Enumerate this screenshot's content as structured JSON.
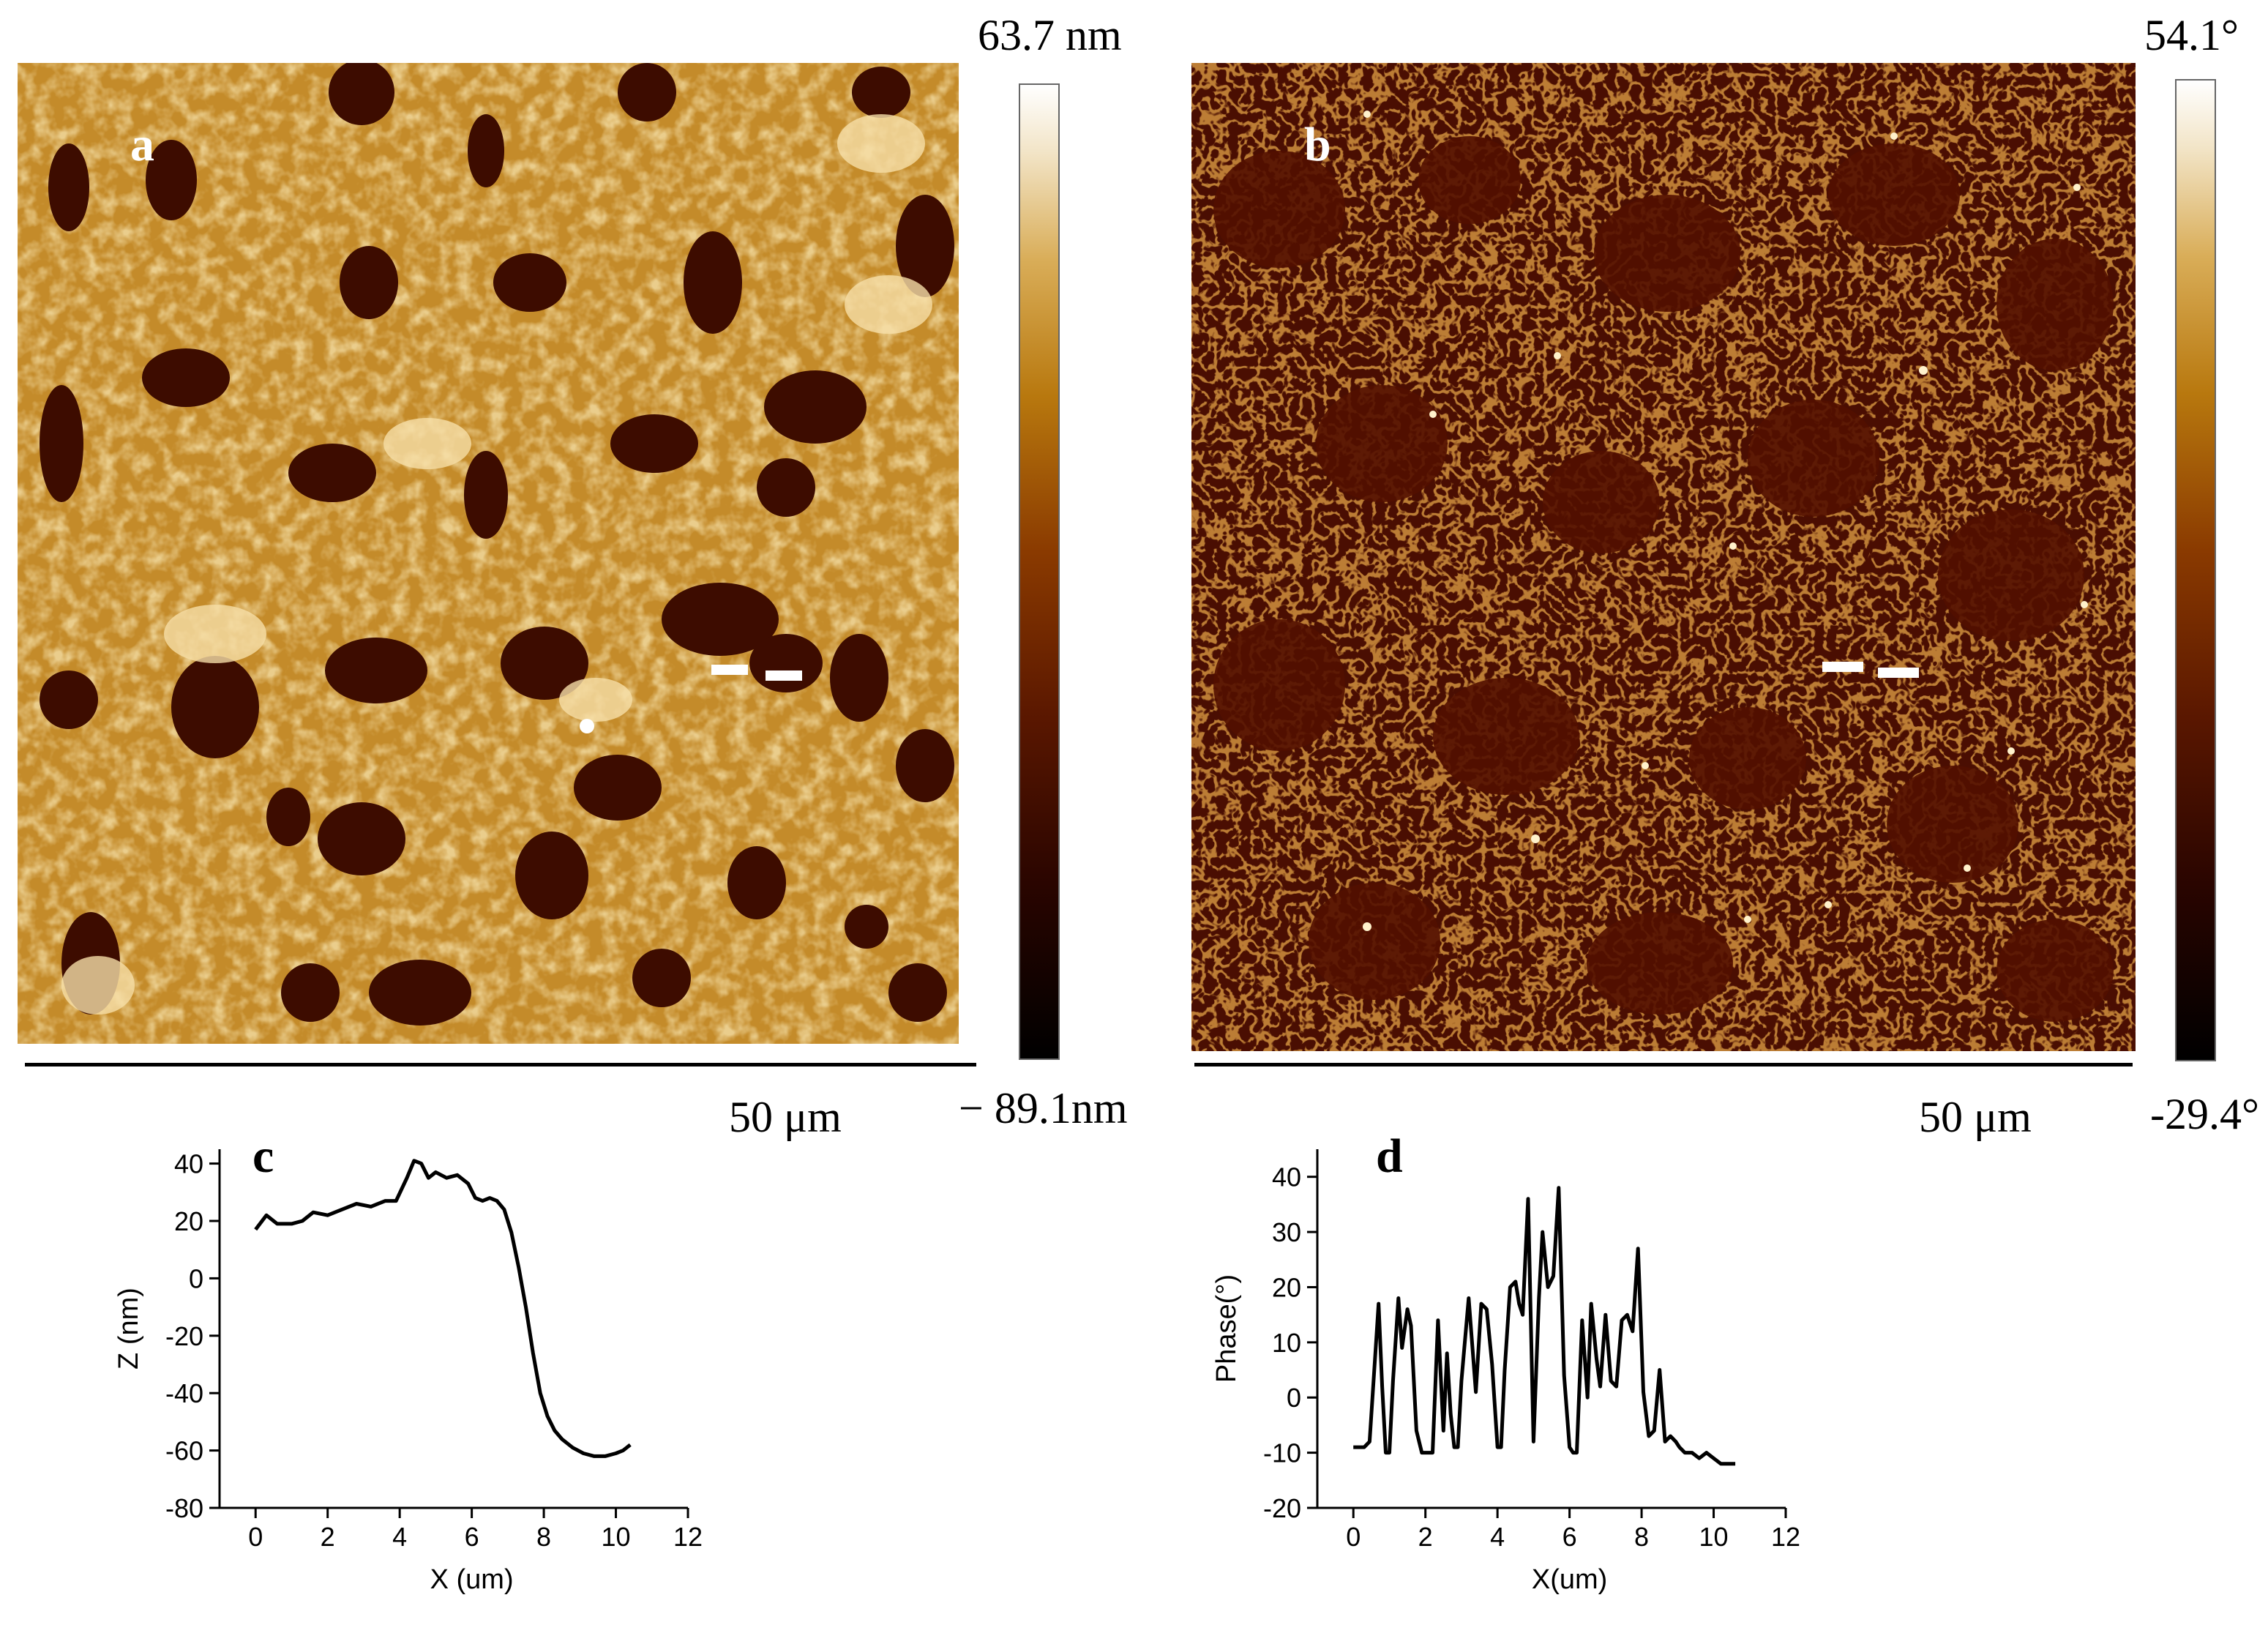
{
  "panels": {
    "a": {
      "letter": "a",
      "scale_bar": "50 μm",
      "colorbar_max": "63.7 nm",
      "colorbar_min": "− 89.1nm"
    },
    "b": {
      "letter": "b",
      "scale_bar": "50 μm",
      "colorbar_max": "54.1°",
      "colorbar_min": "-29.4°"
    }
  },
  "chart_data": [
    {
      "panel": "c",
      "type": "line",
      "xlabel": "X (um)",
      "ylabel": "Z (nm)",
      "xlim": [
        -1,
        12
      ],
      "ylim": [
        -80,
        45
      ],
      "xticks": [
        0,
        2,
        4,
        6,
        8,
        10,
        12
      ],
      "yticks": [
        -80,
        -60,
        -40,
        -20,
        0,
        20,
        40
      ],
      "x": [
        0,
        0.3,
        0.6,
        1.0,
        1.3,
        1.6,
        2.0,
        2.4,
        2.8,
        3.2,
        3.6,
        3.9,
        4.2,
        4.4,
        4.6,
        4.8,
        5.0,
        5.3,
        5.6,
        5.9,
        6.1,
        6.3,
        6.5,
        6.7,
        6.9,
        7.1,
        7.3,
        7.5,
        7.7,
        7.9,
        8.1,
        8.3,
        8.5,
        8.8,
        9.1,
        9.4,
        9.7,
        10.0,
        10.2,
        10.4
      ],
      "y": [
        17,
        22,
        19,
        19,
        20,
        23,
        22,
        24,
        26,
        25,
        27,
        27,
        35,
        41,
        40,
        35,
        37,
        35,
        36,
        33,
        28,
        27,
        28,
        27,
        24,
        16,
        4,
        -10,
        -26,
        -40,
        -48,
        -53,
        -56,
        -59,
        -61,
        -62,
        -62,
        -61,
        -60,
        -58
      ]
    },
    {
      "panel": "d",
      "type": "line",
      "xlabel": "X(um)",
      "ylabel": "Phase(°)",
      "xlim": [
        -1,
        12
      ],
      "ylim": [
        -20,
        45
      ],
      "xticks": [
        0,
        2,
        4,
        6,
        8,
        10,
        12
      ],
      "yticks": [
        -20,
        -10,
        0,
        10,
        20,
        30,
        40
      ],
      "x": [
        0,
        0.3,
        0.45,
        0.6,
        0.7,
        0.8,
        0.9,
        1.0,
        1.1,
        1.25,
        1.35,
        1.5,
        1.6,
        1.75,
        1.9,
        2.0,
        2.2,
        2.35,
        2.5,
        2.6,
        2.7,
        2.8,
        2.9,
        3.0,
        3.2,
        3.4,
        3.55,
        3.7,
        3.85,
        4.0,
        4.1,
        4.2,
        4.35,
        4.5,
        4.6,
        4.7,
        4.85,
        5.0,
        5.15,
        5.25,
        5.4,
        5.55,
        5.7,
        5.85,
        6.0,
        6.1,
        6.2,
        6.35,
        6.5,
        6.6,
        6.75,
        6.85,
        7.0,
        7.15,
        7.3,
        7.45,
        7.6,
        7.75,
        7.9,
        8.05,
        8.2,
        8.35,
        8.5,
        8.65,
        8.8,
        8.95,
        9.05,
        9.2,
        9.4,
        9.6,
        9.8,
        10.0,
        10.2,
        10.4,
        10.6
      ],
      "y": [
        -9,
        -9,
        -8,
        7,
        17,
        2,
        -10,
        -10,
        3,
        18,
        9,
        16,
        13,
        -6,
        -10,
        -10,
        -10,
        14,
        -6,
        8,
        -3,
        -9,
        -9,
        3,
        18,
        1,
        17,
        16,
        6,
        -9,
        -9,
        5,
        20,
        21,
        17,
        15,
        36,
        -8,
        18,
        30,
        20,
        22,
        38,
        4,
        -9,
        -10,
        -10,
        14,
        0,
        17,
        7,
        2,
        15,
        3,
        2,
        14,
        15,
        12,
        27,
        1,
        -7,
        -6,
        5,
        -8,
        -7,
        -8,
        -9,
        -10,
        -10,
        -11,
        -10,
        -11,
        -12,
        -12,
        -12
      ]
    }
  ]
}
